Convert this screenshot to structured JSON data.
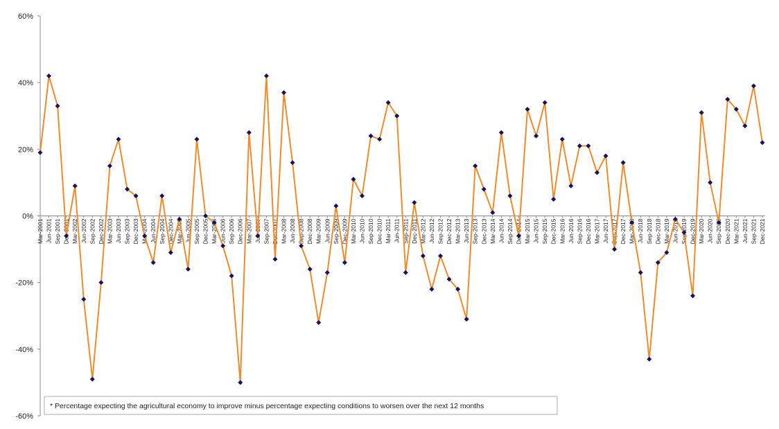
{
  "chart_data": {
    "type": "line",
    "categories": [
      "Mar-2001",
      "Jun-2001",
      "Sep-2001",
      "Dec-2001",
      "Mar-2002",
      "Jun-2002",
      "Sep-2002",
      "Dec-2002",
      "Mar-2003",
      "Jun-2003",
      "Sep-2003",
      "Dec-2003",
      "Mar-2004",
      "Jun-2004",
      "Sep-2004",
      "Dec-2004",
      "Mar-2005",
      "Jun-2005",
      "Sep-2005",
      "Dec-2005",
      "Mar-2006",
      "Jun-2006",
      "Sep-2006",
      "Dec-2006",
      "Mar-2007",
      "Jun-2007",
      "Sep-2007",
      "Dec-2007",
      "Mar-2008",
      "Jun-2008",
      "Sep-2008",
      "Dec-2008",
      "Mar-2009",
      "Jun-2009",
      "Sep-2009",
      "Dec-2009",
      "Mar-2010",
      "Jun-2010",
      "Sep-2010",
      "Dec-2010",
      "Mar-2011",
      "Jun-2011",
      "Sep-2011",
      "Dec-2011",
      "Mar-2012",
      "Jun-2012",
      "Sep-2012",
      "Dec-2012",
      "Mar-2013",
      "Jun-2013",
      "Sep-2013",
      "Dec-2013",
      "Mar-2014",
      "Jun-2014",
      "Sep-2014",
      "Dec-2014",
      "Mar-2015",
      "Jun-2015",
      "Sep-2015",
      "Dec-2015",
      "Mar-2016",
      "Jun-2016",
      "Sep-2016",
      "Dec-2016",
      "Mar-2017",
      "Jun-2017",
      "Sep-2017",
      "Dec-2017",
      "Mar-2018",
      "Jun-2018",
      "Sep-2018",
      "Dec-2018",
      "Mar-2019",
      "Jun-2019",
      "Sep-2019",
      "Dec-2019",
      "Mar-2020",
      "Jun-2020",
      "Sep-2020",
      "Dec-2020",
      "Mar-2021",
      "Jun-2021",
      "Sep-2021",
      "Dec-2021"
    ],
    "values": [
      19,
      42,
      33,
      -6,
      9,
      -25,
      -49,
      -20,
      15,
      23,
      8,
      6,
      -6,
      -14,
      6,
      -11,
      -1,
      -16,
      23,
      0,
      -2,
      -9,
      -18,
      -50,
      25,
      -6,
      42,
      -13,
      37,
      16,
      -9,
      -16,
      -32,
      -17,
      3,
      -14,
      11,
      6,
      24,
      23,
      34,
      30,
      -17,
      4,
      -12,
      -22,
      -12,
      -19,
      -22,
      -31,
      15,
      8,
      1,
      25,
      6,
      -6,
      32,
      24,
      34,
      5,
      23,
      9,
      21,
      21,
      13,
      18,
      -10,
      16,
      -2,
      -17,
      -43,
      -14,
      -11,
      -1,
      -5,
      -24,
      31,
      10,
      -2,
      35,
      32,
      27,
      39,
      22
    ],
    "color": "#f28a2a",
    "marker_color": "#14145e",
    "ylim": [
      -60,
      60
    ],
    "yticks": [
      {
        "value": -60,
        "label": "-60%"
      },
      {
        "value": -40,
        "label": "-40%"
      },
      {
        "value": -20,
        "label": "-20%"
      },
      {
        "value": 0,
        "label": "0%"
      },
      {
        "value": 20,
        "label": "20%"
      },
      {
        "value": 40,
        "label": "40%"
      },
      {
        "value": 60,
        "label": "60%"
      }
    ],
    "note": "* Percentage expecting the agricultural economy to improve minus percentage expecting conditions to worsen over the next 12 months"
  }
}
